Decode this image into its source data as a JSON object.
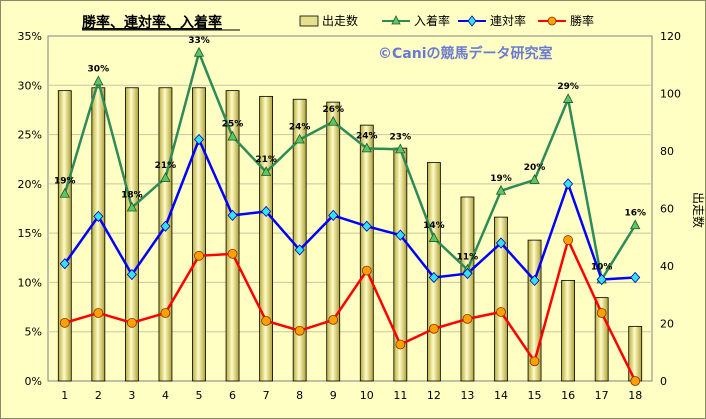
{
  "chart_data": {
    "type": "bar+line",
    "title": "勝率、連対率、入着率",
    "watermark": "©Caniの競馬データ研究室",
    "y2label": "出走数",
    "categories": [
      "1",
      "2",
      "3",
      "4",
      "5",
      "6",
      "7",
      "8",
      "9",
      "10",
      "11",
      "12",
      "13",
      "14",
      "15",
      "16",
      "17",
      "18"
    ],
    "ylim": [
      0,
      35
    ],
    "yticks": [
      "0%",
      "5%",
      "10%",
      "15%",
      "20%",
      "25%",
      "30%",
      "35%"
    ],
    "y2lim": [
      0,
      120
    ],
    "y2ticks": [
      "0",
      "20",
      "40",
      "60",
      "80",
      "100",
      "120"
    ],
    "grid": true,
    "legend_position": "top",
    "bar_series": {
      "name": "出走数",
      "color": "#e6e08c",
      "values": [
        101,
        102,
        102,
        102,
        102,
        101,
        99,
        98,
        97,
        89,
        81,
        76,
        64,
        57,
        49,
        35,
        29,
        19
      ]
    },
    "series": [
      {
        "name": "入着率",
        "color": "#2e8b57",
        "marker": "triangle",
        "values": [
          19,
          30.4,
          17.6,
          20.6,
          33.3,
          24.8,
          21.2,
          24.5,
          26.3,
          23.6,
          23.5,
          14.5,
          11.3,
          19.3,
          20.4,
          28.6,
          10.3,
          15.8
        ],
        "labels": [
          "19%",
          "30%",
          "18%",
          "21%",
          "33%",
          "25%",
          "21%",
          "24%",
          "26%",
          "24%",
          "23%",
          "14%",
          "11%",
          "19%",
          "20%",
          "29%",
          "10%",
          "16%"
        ]
      },
      {
        "name": "連対率",
        "color": "#0000ff",
        "marker": "diamond",
        "values": [
          11.9,
          16.7,
          10.8,
          15.7,
          24.5,
          16.8,
          17.2,
          13.3,
          16.8,
          15.7,
          14.8,
          10.5,
          10.9,
          14.0,
          10.2,
          20.0,
          10.3,
          10.5
        ]
      },
      {
        "name": "勝率",
        "color": "#ff0000",
        "marker": "circle",
        "values": [
          5.9,
          6.9,
          5.9,
          6.9,
          12.7,
          12.9,
          6.1,
          5.1,
          6.2,
          11.2,
          3.7,
          5.3,
          6.3,
          7.0,
          2.0,
          14.3,
          6.9,
          0
        ]
      }
    ]
  }
}
